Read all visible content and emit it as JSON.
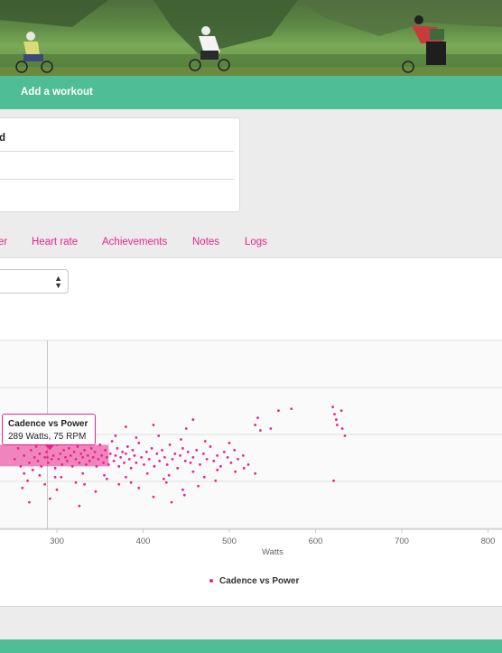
{
  "nav": {
    "add_workout": "Add a workout"
  },
  "info_card": {
    "partial_label": "d"
  },
  "tabs": [
    {
      "label": "er"
    },
    {
      "label": "Heart rate"
    },
    {
      "label": "Achievements"
    },
    {
      "label": "Notes"
    },
    {
      "label": "Logs"
    }
  ],
  "selector": {
    "caret": "▲▼"
  },
  "tooltip": {
    "title": "Cadence vs Power",
    "value": "289 Watts, 75 RPM"
  },
  "colors": {
    "accent": "#e8248c",
    "brand_green": "#4fbe96"
  },
  "chart_data": {
    "type": "scatter",
    "title": "",
    "xlabel": "Watts",
    "ylabel": "",
    "xlim": [
      238,
      820
    ],
    "ylim": [
      35,
      140
    ],
    "x_ticks": [
      "300",
      "400",
      "500",
      "600",
      "700",
      "800"
    ],
    "crosshair_x": 289,
    "series": [
      {
        "name": "Cadence vs Power",
        "color": "#e8248c",
        "points": [
          [
            251,
            74
          ],
          [
            255,
            80
          ],
          [
            258,
            70
          ],
          [
            262,
            76
          ],
          [
            266,
            84
          ],
          [
            268,
            72
          ],
          [
            270,
            79
          ],
          [
            272,
            68
          ],
          [
            274,
            75
          ],
          [
            276,
            81
          ],
          [
            278,
            73
          ],
          [
            280,
            77
          ],
          [
            282,
            70
          ],
          [
            284,
            83
          ],
          [
            286,
            75
          ],
          [
            288,
            78
          ],
          [
            289,
            75
          ],
          [
            290,
            72
          ],
          [
            292,
            80
          ],
          [
            294,
            74
          ],
          [
            296,
            76
          ],
          [
            298,
            69
          ],
          [
            300,
            82
          ],
          [
            302,
            74
          ],
          [
            304,
            77
          ],
          [
            306,
            71
          ],
          [
            308,
            79
          ],
          [
            310,
            75
          ],
          [
            312,
            73
          ],
          [
            314,
            80
          ],
          [
            316,
            76
          ],
          [
            318,
            70
          ],
          [
            320,
            78
          ],
          [
            322,
            74
          ],
          [
            324,
            81
          ],
          [
            326,
            72
          ],
          [
            328,
            77
          ],
          [
            330,
            75
          ],
          [
            332,
            79
          ],
          [
            334,
            71
          ],
          [
            336,
            76
          ],
          [
            338,
            73
          ],
          [
            340,
            80
          ],
          [
            342,
            75
          ],
          [
            344,
            78
          ],
          [
            346,
            70
          ],
          [
            348,
            74
          ],
          [
            350,
            82
          ],
          [
            352,
            76
          ],
          [
            354,
            72
          ],
          [
            356,
            79
          ],
          [
            358,
            75
          ],
          [
            360,
            71
          ],
          [
            362,
            77
          ],
          [
            364,
            84
          ],
          [
            366,
            73
          ],
          [
            368,
            76
          ],
          [
            370,
            80
          ],
          [
            372,
            70
          ],
          [
            374,
            75
          ],
          [
            376,
            78
          ],
          [
            378,
            72
          ],
          [
            380,
            77
          ],
          [
            382,
            81
          ],
          [
            384,
            74
          ],
          [
            386,
            69
          ],
          [
            388,
            79
          ],
          [
            390,
            76
          ],
          [
            392,
            72
          ],
          [
            395,
            83
          ],
          [
            398,
            75
          ],
          [
            401,
            71
          ],
          [
            404,
            78
          ],
          [
            407,
            74
          ],
          [
            410,
            80
          ],
          [
            413,
            70
          ],
          [
            416,
            77
          ],
          [
            419,
            73
          ],
          [
            422,
            79
          ],
          [
            425,
            75
          ],
          [
            428,
            71
          ],
          [
            431,
            82
          ],
          [
            434,
            74
          ],
          [
            437,
            77
          ],
          [
            440,
            69
          ],
          [
            443,
            76
          ],
          [
            446,
            80
          ],
          [
            449,
            73
          ],
          [
            452,
            78
          ],
          [
            455,
            72
          ],
          [
            458,
            75
          ],
          [
            462,
            79
          ],
          [
            466,
            71
          ],
          [
            470,
            77
          ],
          [
            474,
            74
          ],
          [
            478,
            81
          ],
          [
            482,
            73
          ],
          [
            486,
            76
          ],
          [
            490,
            70
          ],
          [
            494,
            78
          ],
          [
            498,
            75
          ],
          [
            502,
            72
          ],
          [
            506,
            79
          ],
          [
            510,
            74
          ],
          [
            516,
            76
          ],
          [
            522,
            71
          ],
          [
            254,
            86
          ],
          [
            262,
            66
          ],
          [
            270,
            88
          ],
          [
            280,
            65
          ],
          [
            292,
            87
          ],
          [
            305,
            64
          ],
          [
            318,
            88
          ],
          [
            330,
            66
          ],
          [
            342,
            89
          ],
          [
            355,
            65
          ],
          [
            368,
            87
          ],
          [
            380,
            64
          ],
          [
            392,
            86
          ],
          [
            405,
            66
          ],
          [
            418,
            87
          ],
          [
            430,
            65
          ],
          [
            444,
            85
          ],
          [
            458,
            67
          ],
          [
            472,
            84
          ],
          [
            486,
            68
          ],
          [
            500,
            83
          ],
          [
            260,
            58
          ],
          [
            286,
            60
          ],
          [
            300,
            57
          ],
          [
            322,
            61
          ],
          [
            345,
            56
          ],
          [
            372,
            60
          ],
          [
            395,
            58
          ],
          [
            412,
            53
          ],
          [
            427,
            61
          ],
          [
            446,
            57
          ],
          [
            464,
            59
          ],
          [
            484,
            62
          ],
          [
            256,
            96
          ],
          [
            284,
            95
          ],
          [
            338,
            95
          ],
          [
            380,
            92
          ],
          [
            412,
            93
          ],
          [
            450,
            91
          ],
          [
            530,
            93
          ],
          [
            533,
            97
          ],
          [
            536,
            90
          ],
          [
            548,
            91
          ],
          [
            557,
            101
          ],
          [
            572,
            102
          ],
          [
            620,
            103
          ],
          [
            622,
            99
          ],
          [
            624,
            96
          ],
          [
            625,
            93
          ],
          [
            630,
            101
          ],
          [
            631,
            91
          ],
          [
            634,
            87
          ],
          [
            621,
            62
          ],
          [
            266,
            62
          ],
          [
            298,
            64
          ],
          [
            332,
            60
          ],
          [
            358,
            63
          ],
          [
            386,
            61
          ],
          [
            424,
            63
          ],
          [
            471,
            64
          ],
          [
            458,
            96
          ],
          [
            268,
            50
          ],
          [
            292,
            52
          ],
          [
            326,
            48
          ],
          [
            433,
            50
          ],
          [
            448,
            54
          ],
          [
            507,
            67
          ],
          [
            517,
            69
          ],
          [
            530,
            66
          ]
        ]
      }
    ]
  }
}
